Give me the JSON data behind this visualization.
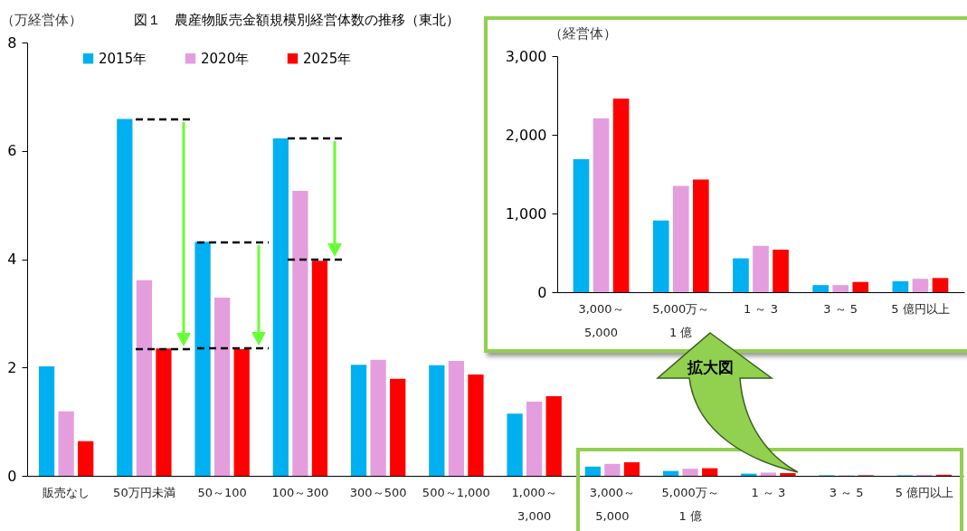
{
  "chart_data": [
    {
      "type": "bar",
      "title": "図１　農産物販売金額規模別経営体数の推移（東北）",
      "ylabel": "（万経営体）",
      "categories": [
        "販売なし",
        "50万円未満",
        "50～100",
        "100～300",
        "300～500",
        "500～1,000",
        "1,000～\n3,000",
        "3,000～\n5,000",
        "5,000万～\n1 億",
        "1 ～ 3",
        "3 ～ 5",
        "5 億円以上"
      ],
      "series": [
        {
          "name": "2015年",
          "color": "#00b0f0",
          "values": [
            2.02,
            6.59,
            4.32,
            6.23,
            2.05,
            2.04,
            1.15,
            0.17,
            0.09,
            0.04,
            0.01,
            0.01
          ]
        },
        {
          "name": "2020年",
          "color": "#e49edd",
          "values": [
            1.19,
            3.61,
            3.29,
            5.26,
            2.14,
            2.12,
            1.37,
            0.22,
            0.13,
            0.06,
            0.01,
            0.02
          ]
        },
        {
          "name": "2025年",
          "color": "#ff0000",
          "values": [
            0.64,
            2.35,
            2.34,
            3.97,
            1.79,
            1.87,
            1.47,
            0.25,
            0.14,
            0.05,
            0.01,
            0.02
          ]
        }
      ],
      "ylim": [
        0,
        8
      ],
      "yticks": [
        0,
        2,
        4,
        6,
        8
      ],
      "legend": "top left",
      "annotations": [
        "拡大図"
      ]
    },
    {
      "type": "bar",
      "ylabel": "（経営体）",
      "categories": [
        "3,000～\n5,000",
        "5,000万～\n1 億",
        "1 ～ 3",
        "3 ～ 5",
        "5 億円以上"
      ],
      "series": [
        {
          "color": "#00b0f0",
          "values": [
            1690,
            910,
            430,
            90,
            140
          ]
        },
        {
          "color": "#e49edd",
          "values": [
            2210,
            1350,
            590,
            90,
            170
          ]
        },
        {
          "color": "#ff0000",
          "values": [
            2460,
            1430,
            540,
            130,
            180
          ]
        }
      ],
      "ylim": [
        0,
        3000
      ],
      "yticks": [
        0,
        {
          "value": 1000,
          "label": "1,000"
        },
        {
          "value": 2000,
          "label": "2,000"
        },
        {
          "value": 3000,
          "label": "3,000"
        }
      ]
    }
  ]
}
